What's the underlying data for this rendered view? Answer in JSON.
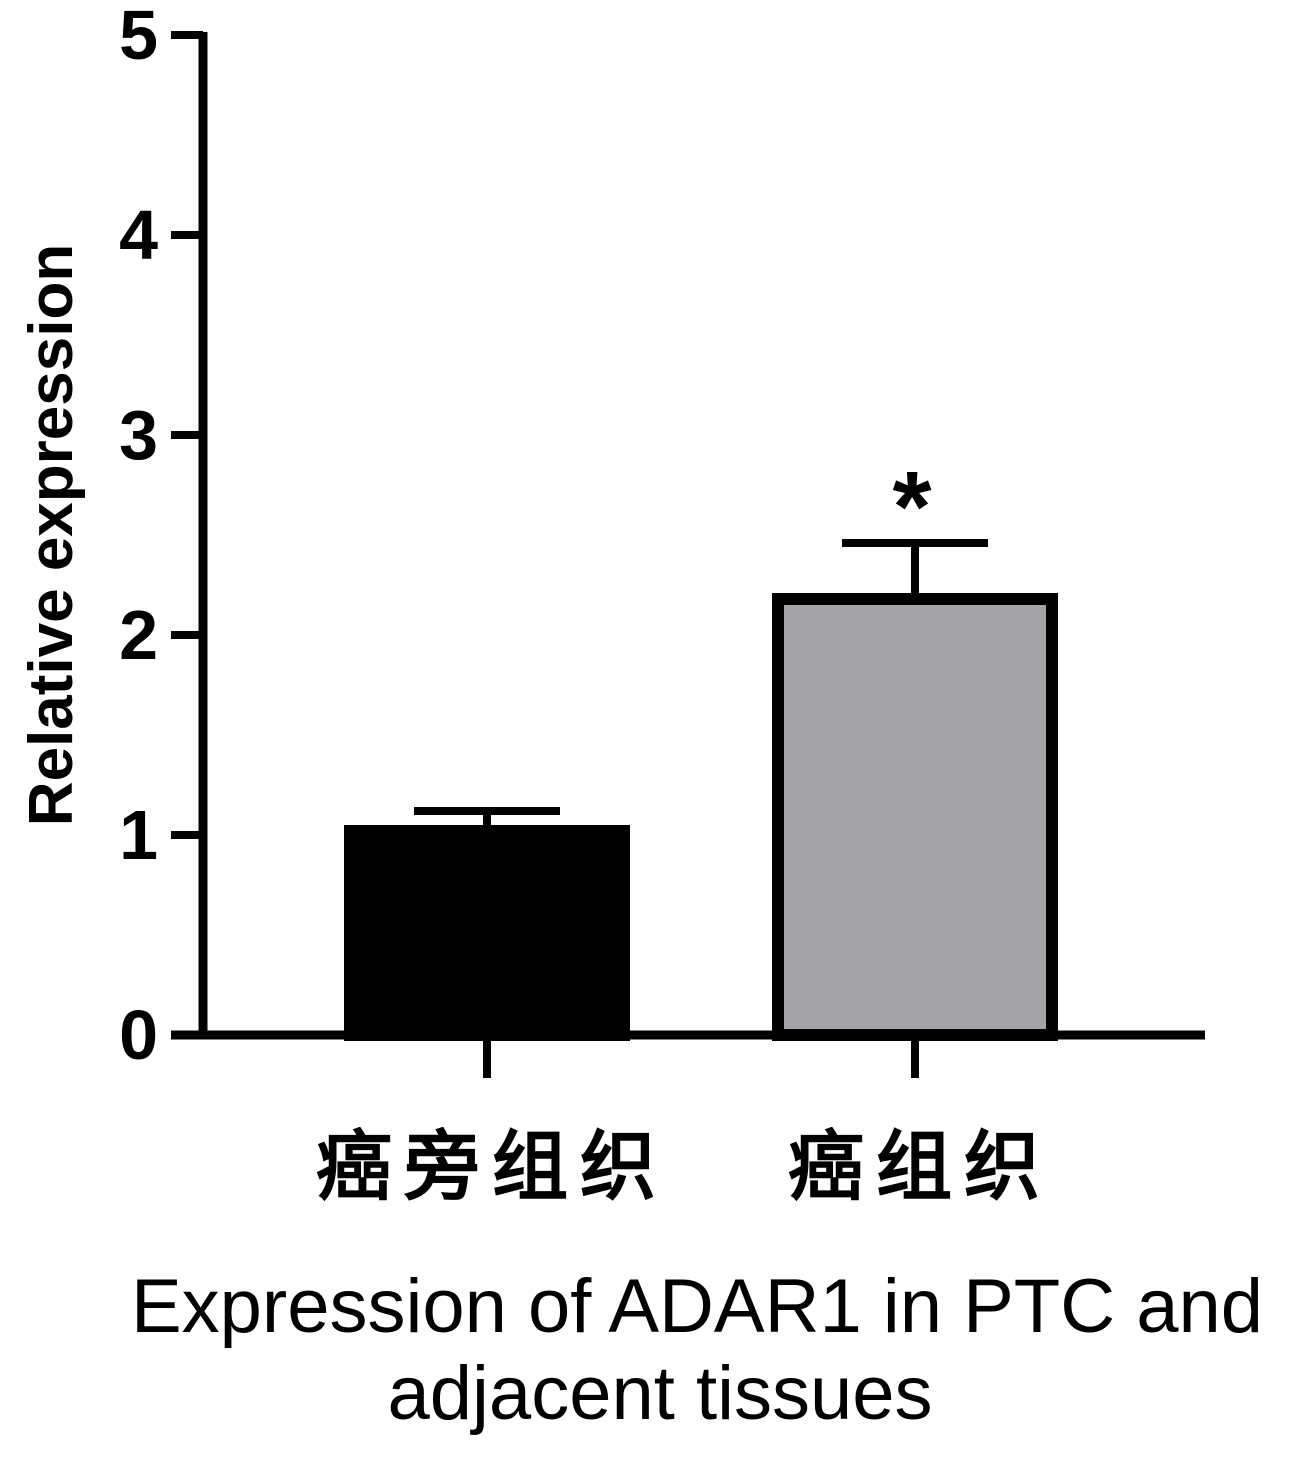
{
  "chart_data": {
    "type": "bar",
    "categories": [
      "癌旁组织",
      "癌组织"
    ],
    "values": [
      1.02,
      2.18
    ],
    "errors": [
      0.1,
      0.28
    ],
    "annotations": [
      "",
      "*"
    ],
    "bar_colors": [
      "#000000",
      "#a3a3a8"
    ],
    "bar_stroke": "#000000",
    "ylabel": "Relative expression",
    "xlabel": "Expression of ADAR1 in PTC and adjacent tissues",
    "ylim": [
      0,
      5
    ],
    "yticks": [
      0,
      1,
      2,
      3,
      4,
      5
    ],
    "grid": false,
    "legend": "none"
  }
}
